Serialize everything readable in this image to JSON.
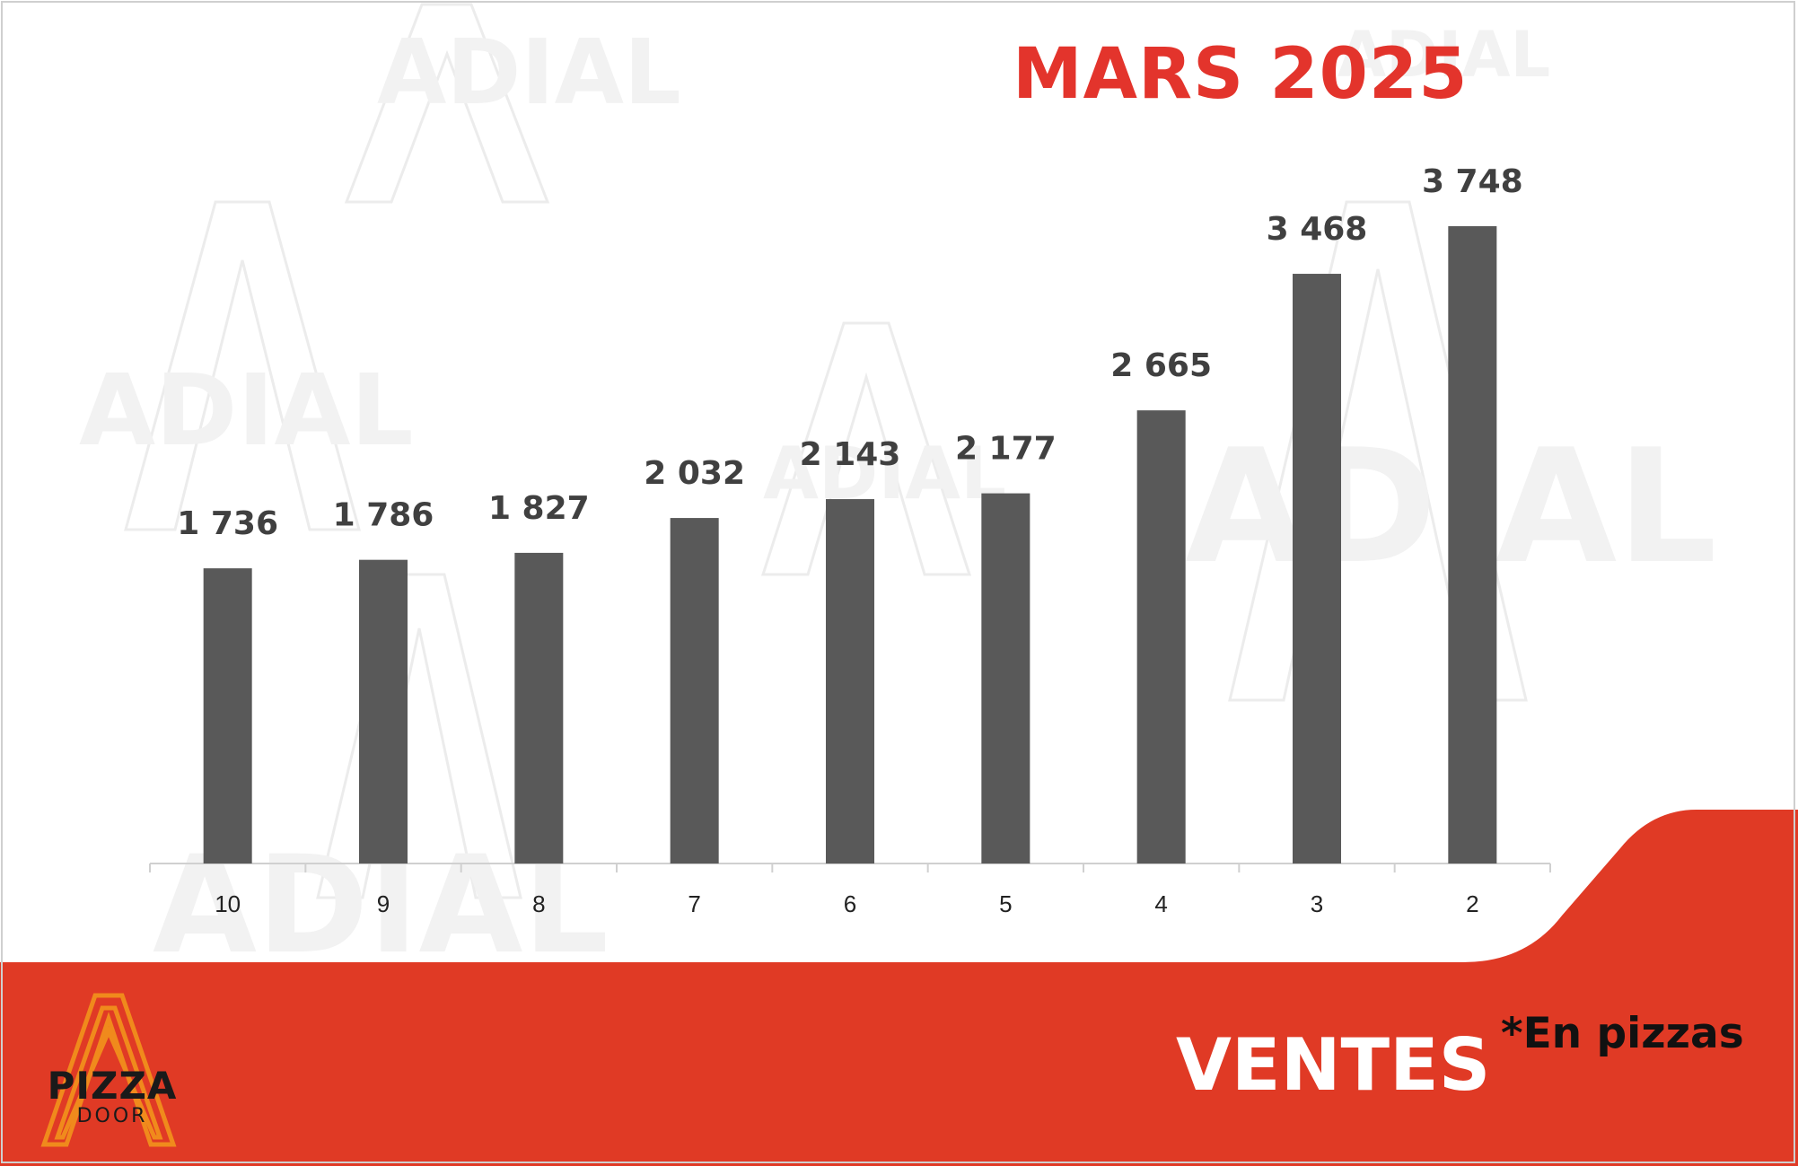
{
  "header": {
    "title": "MARS 2025"
  },
  "footer": {
    "subject": "VENTES",
    "unit_note": "*En pizzas"
  },
  "brand": {
    "logo_word": "PIZZA",
    "logo_sub": "DOOR",
    "watermark_text": "ADIAL"
  },
  "colors": {
    "bar": "#595959",
    "accent": "#e3342c",
    "banner": "#e03a25",
    "logo_orange": "#f08a1c"
  },
  "chart_data": {
    "type": "bar",
    "title": "MARS 2025",
    "categories": [
      "10",
      "9",
      "8",
      "7",
      "6",
      "5",
      "4",
      "3",
      "2"
    ],
    "values": [
      1736,
      1786,
      1827,
      2032,
      2143,
      2177,
      2665,
      3468,
      3748
    ],
    "value_labels": [
      "1 736",
      "1 786",
      "1 827",
      "2 032",
      "2 143",
      "2 177",
      "2 665",
      "3 468",
      "3 748"
    ],
    "xlabel": "",
    "ylabel": "",
    "ylim": [
      0,
      3748
    ],
    "grid": false,
    "legend": "none"
  }
}
